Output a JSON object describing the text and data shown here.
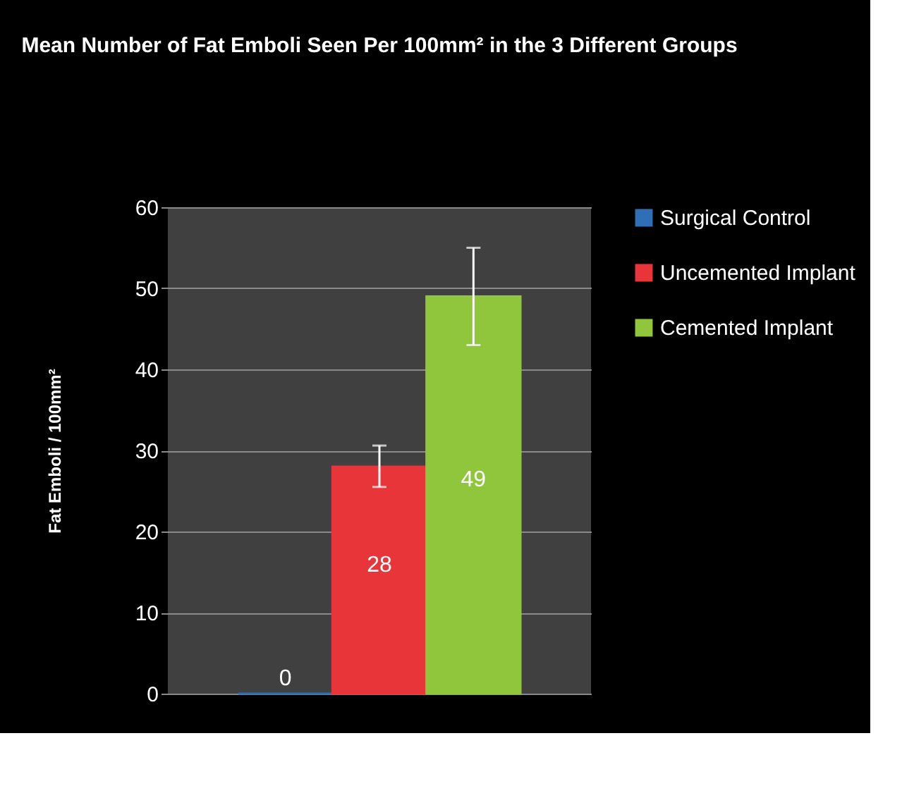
{
  "chart_data": {
    "type": "bar",
    "title": "Mean Number of Fat Emboli Seen Per 100mm² in the 3 Different Groups",
    "ylabel": "Fat Emboli / 100mm²",
    "categories": [
      null
    ],
    "series": [
      {
        "name": "Surgical Control",
        "color": "#2f6fb5",
        "values": [
          0
        ]
      },
      {
        "name": "Uncemented Implant",
        "color": "#e8353a",
        "values": [
          28
        ],
        "errors": [
          [
            25.5,
            30.6
          ]
        ]
      },
      {
        "name": "Cemented Implant",
        "color": "#8fc63c",
        "values": [
          49
        ],
        "errors": [
          [
            43,
            55
          ]
        ]
      }
    ],
    "ylim": [
      0,
      60
    ],
    "yticks": [
      0,
      10,
      20,
      30,
      40,
      50,
      60
    ],
    "grid": "y",
    "legend": "right",
    "data_labels": true,
    "tick_labels": "y"
  }
}
